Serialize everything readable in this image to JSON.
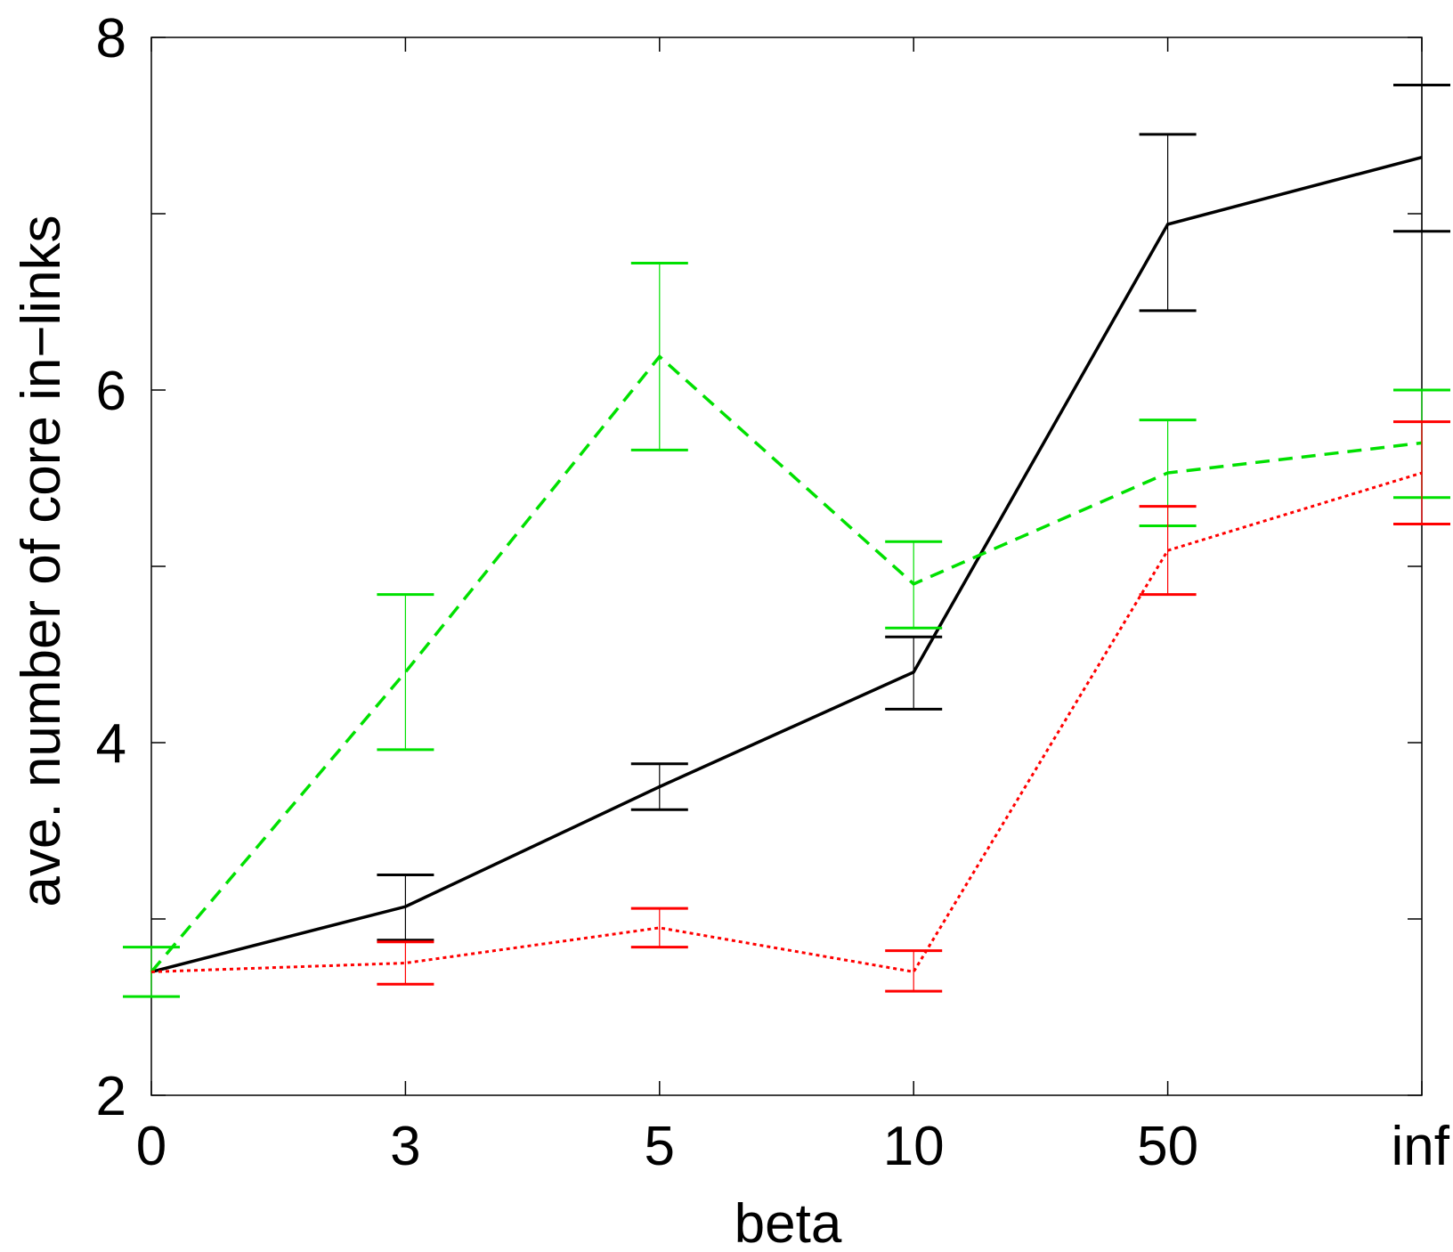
{
  "chart_data": {
    "type": "line",
    "title": "",
    "xlabel": "beta",
    "ylabel": "ave. number of core in−links",
    "categories": [
      "0",
      "3",
      "5",
      "10",
      "50",
      "inf"
    ],
    "ylim": [
      2,
      8
    ],
    "yticks": [
      2,
      3,
      4,
      5,
      6,
      7,
      8
    ],
    "ytick_labels": [
      "2",
      "",
      "4",
      "",
      "6",
      "",
      "8"
    ],
    "grid": false,
    "legend": "none",
    "series": [
      {
        "color": "#000000",
        "style": "solid",
        "values": [
          2.7,
          3.07,
          3.75,
          4.4,
          6.94,
          7.32
        ],
        "err_low": [
          2.7,
          2.88,
          3.62,
          4.19,
          6.45,
          6.9
        ],
        "err_high": [
          2.7,
          3.25,
          3.88,
          4.6,
          7.45,
          7.73
        ]
      },
      {
        "color": "#00e000",
        "style": "dashed",
        "values": [
          2.7,
          4.4,
          6.19,
          4.9,
          5.53,
          5.7
        ],
        "err_low": [
          2.56,
          3.96,
          5.66,
          4.65,
          5.23,
          5.39
        ],
        "err_high": [
          2.84,
          4.84,
          6.72,
          5.14,
          5.83,
          6.0
        ]
      },
      {
        "color": "#ff0000",
        "style": "dotted",
        "values": [
          2.7,
          2.75,
          2.95,
          2.7,
          5.09,
          5.53
        ],
        "err_low": [
          2.7,
          2.63,
          2.84,
          2.59,
          4.84,
          5.24
        ],
        "err_high": [
          2.7,
          2.87,
          3.06,
          2.82,
          5.34,
          5.82
        ]
      }
    ]
  }
}
